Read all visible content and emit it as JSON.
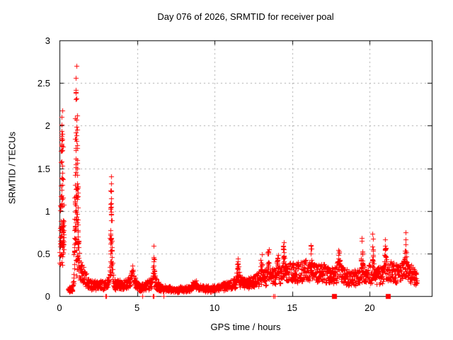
{
  "window": {
    "background": "#ffffff"
  },
  "chart_data": {
    "type": "scatter",
    "title": "Day 076 of 2026, SRMTID for receiver poal",
    "xlabel": "GPS time / hours",
    "ylabel": "SRMTID / TECUs",
    "xlim": [
      0,
      24
    ],
    "ylim": [
      0,
      3
    ],
    "x_ticks": [
      0,
      5,
      10,
      15,
      20
    ],
    "x_tick_labels": [
      "0",
      "5",
      "10",
      "15",
      "20"
    ],
    "y_ticks": [
      0,
      0.5,
      1,
      1.5,
      2,
      2.5,
      3
    ],
    "y_tick_labels": [
      "0",
      "0.5",
      "1",
      "1.5",
      "2",
      "2.5",
      "3"
    ],
    "grid": true,
    "legend": "none",
    "marker": "plus",
    "marker_size_px": 7,
    "marker_color": "#ff0000",
    "grid_color": "#a8a8a8",
    "frame_color": "#000000",
    "series_name": "SRMTID",
    "x_start": 0,
    "x_end": 23.05,
    "sampling_dt_hours": 0.012,
    "data_gaps": [
      [
        0.3,
        0.55
      ]
    ],
    "baseline_envelope": [
      [
        0,
        0.5
      ],
      [
        0.3,
        0.5
      ],
      [
        0.55,
        0.07
      ],
      [
        0.9,
        0.09
      ],
      [
        0.95,
        0.35
      ],
      [
        1.3,
        0.33
      ],
      [
        1.9,
        0.13
      ],
      [
        3.0,
        0.13
      ],
      [
        3.32,
        0.22
      ],
      [
        3.6,
        0.13
      ],
      [
        4.2,
        0.13
      ],
      [
        4.7,
        0.17
      ],
      [
        5.2,
        0.09
      ],
      [
        6.08,
        0.17
      ],
      [
        6.5,
        0.09
      ],
      [
        7.5,
        0.07
      ],
      [
        9.0,
        0.09
      ],
      [
        10.0,
        0.08
      ],
      [
        11.0,
        0.13
      ],
      [
        11.5,
        0.17
      ],
      [
        12.0,
        0.14
      ],
      [
        12.5,
        0.17
      ],
      [
        13.0,
        0.2
      ],
      [
        13.5,
        0.23
      ],
      [
        14.0,
        0.23
      ],
      [
        14.5,
        0.27
      ],
      [
        15.0,
        0.28
      ],
      [
        16.0,
        0.3
      ],
      [
        17.0,
        0.27
      ],
      [
        17.5,
        0.24
      ],
      [
        18.0,
        0.27
      ],
      [
        18.7,
        0.2
      ],
      [
        19.3,
        0.22
      ],
      [
        20.0,
        0.26
      ],
      [
        20.6,
        0.24
      ],
      [
        21.2,
        0.3
      ],
      [
        21.8,
        0.27
      ],
      [
        22.3,
        0.3
      ],
      [
        22.8,
        0.24
      ],
      [
        23.05,
        0.2
      ]
    ],
    "spikes": [
      {
        "x": 0.16,
        "w": 0.09,
        "add": 1.95,
        "peak_value": 2.45
      },
      {
        "x": 1.08,
        "w": 0.1,
        "add": 2.6,
        "peak_value": 2.95
      },
      {
        "x": 3.32,
        "w": 0.06,
        "add": 1.2,
        "peak_value": 1.42
      },
      {
        "x": 4.7,
        "w": 0.12,
        "add": 0.2,
        "peak_value": 0.37
      },
      {
        "x": 6.08,
        "w": 0.05,
        "add": 0.45,
        "peak_value": 0.62
      },
      {
        "x": 8.7,
        "w": 0.15,
        "add": 0.1,
        "peak_value": 0.22
      },
      {
        "x": 11.5,
        "w": 0.08,
        "add": 0.25,
        "peak_value": 0.43
      },
      {
        "x": 13.0,
        "w": 0.07,
        "add": 0.28,
        "peak_value": 0.5
      },
      {
        "x": 13.45,
        "w": 0.06,
        "add": 0.35,
        "peak_value": 0.6
      },
      {
        "x": 14.05,
        "w": 0.06,
        "add": 0.32,
        "peak_value": 0.62
      },
      {
        "x": 14.45,
        "w": 0.05,
        "add": 0.46,
        "peak_value": 0.75
      },
      {
        "x": 16.2,
        "w": 0.06,
        "add": 0.35,
        "peak_value": 0.65
      },
      {
        "x": 18.0,
        "w": 0.07,
        "add": 0.33,
        "peak_value": 0.62
      },
      {
        "x": 19.5,
        "w": 0.06,
        "add": 0.4,
        "peak_value": 0.66
      },
      {
        "x": 20.2,
        "w": 0.04,
        "add": 0.52,
        "peak_value": 0.8
      },
      {
        "x": 21.0,
        "w": 0.07,
        "add": 0.32,
        "peak_value": 0.6
      },
      {
        "x": 22.3,
        "w": 0.07,
        "add": 0.36,
        "peak_value": 0.66
      }
    ],
    "zero_plus_points": [
      2.97,
      3.03,
      5.35,
      6.02,
      6.08,
      6.7,
      13.8,
      13.88
    ],
    "zero_square_points": [
      17.7,
      21.15
    ]
  }
}
